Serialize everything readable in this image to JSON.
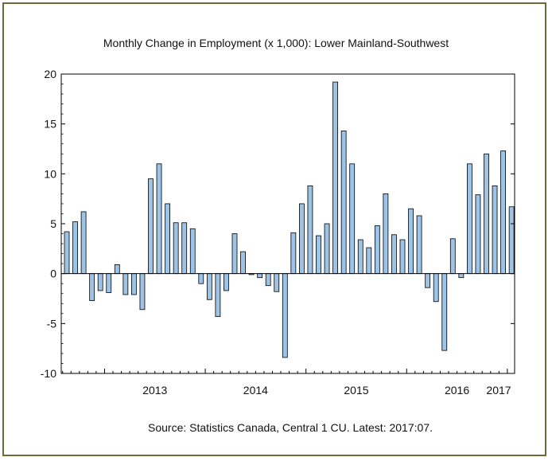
{
  "chart_data": {
    "type": "bar",
    "title": "Monthly Change in Employment (x 1,000): Lower Mainland-Southwest",
    "source": "Source: Statistics Canada, Central 1 CU. Latest: 2017:07.",
    "xlabel": "",
    "ylabel": "",
    "ylim": [
      -10,
      20
    ],
    "yticks": [
      -10,
      -5,
      0,
      5,
      10,
      15,
      20
    ],
    "grid": false,
    "legend": "none",
    "year_labels": [
      "2013",
      "2014",
      "2015",
      "2016",
      "2017"
    ],
    "bar_color": "#9dc3e6",
    "bar_edge_color": "#000000",
    "series": [
      {
        "values": [
          4.2,
          5.2,
          6.2,
          -2.7,
          -1.7,
          -1.9,
          0.9,
          -2.1,
          -2.1,
          -3.6,
          9.5,
          11.0,
          7.0,
          5.1,
          5.1,
          4.5,
          -1.0,
          -2.6,
          -4.3,
          -1.7,
          4.0,
          2.2,
          -0.1,
          -0.4,
          -1.2,
          -1.8,
          -8.4,
          4.1,
          7.0,
          8.8,
          3.8,
          5.0,
          19.2,
          14.3,
          11.0,
          3.4,
          2.6,
          4.8,
          8.0,
          3.9,
          3.4,
          6.5,
          5.8,
          -1.4,
          -2.8,
          -7.7,
          3.5,
          -0.4,
          11.0,
          7.9,
          12.0,
          8.8,
          12.3,
          6.7
        ]
      }
    ]
  }
}
